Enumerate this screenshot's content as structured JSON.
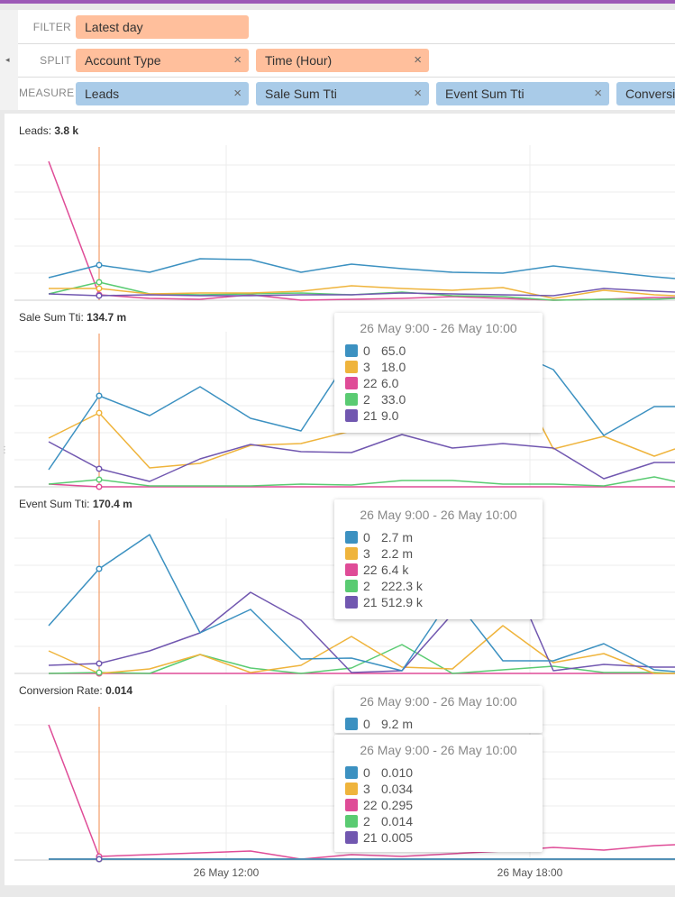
{
  "filter_bar": {
    "filter_label": "FILTER",
    "split_label": "SPLIT",
    "measure_label": "MEASURE",
    "filters": [
      {
        "label": "Latest day"
      }
    ],
    "splits": [
      {
        "label": "Account Type"
      },
      {
        "label": "Time (Hour)"
      }
    ],
    "measures": [
      {
        "label": "Leads"
      },
      {
        "label": "Sale Sum Tti"
      },
      {
        "label": "Event Sum Tti"
      },
      {
        "label": "Conversion Rate"
      }
    ],
    "remove_icon": "×",
    "collapse_icon": "◂"
  },
  "colors": {
    "0": "#3c91c1",
    "3": "#efb43c",
    "22": "#df4c97",
    "2": "#5acb72",
    "21": "#7157b0"
  },
  "tooltip_range": "26 May 9:00 - 26 May 10:00",
  "time_axis": {
    "ticks": [
      "26 May 12:00",
      "26 May 18:00"
    ]
  },
  "charts": [
    {
      "name": "Leads",
      "total": "3.8 k"
    },
    {
      "name": "Sale Sum Tti",
      "total": "134.7 m",
      "tooltip": [
        {
          "key": "0",
          "value": "65.0"
        },
        {
          "key": "3",
          "value": "18.0"
        },
        {
          "key": "22",
          "value": "6.0"
        },
        {
          "key": "2",
          "value": "33.0"
        },
        {
          "key": "21",
          "value": "9.0"
        }
      ]
    },
    {
      "name": "Event Sum Tti",
      "total": "170.4 m",
      "tooltip": [
        {
          "key": "0",
          "value": "2.7 m"
        },
        {
          "key": "3",
          "value": "2.2 m"
        },
        {
          "key": "22",
          "value": "6.4 k"
        },
        {
          "key": "2",
          "value": "222.3 k"
        },
        {
          "key": "21",
          "value": "512.9 k"
        }
      ]
    },
    {
      "name": "Conversion Rate",
      "total": "0.014",
      "tooltip_partial": {
        "key": "0",
        "value": "9.2 m"
      },
      "tooltip": [
        {
          "key": "0",
          "value": "0.010"
        },
        {
          "key": "3",
          "value": "0.034"
        },
        {
          "key": "22",
          "value": "0.295"
        },
        {
          "key": "2",
          "value": "0.014"
        },
        {
          "key": "21",
          "value": "0.005"
        }
      ]
    }
  ]
}
